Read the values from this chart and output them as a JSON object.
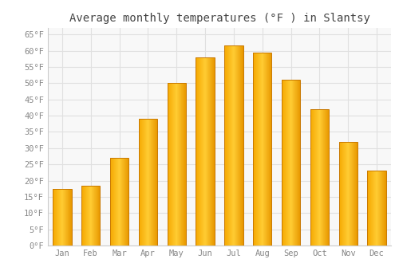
{
  "title": "Average monthly temperatures (°F ) in Slantsy",
  "months": [
    "Jan",
    "Feb",
    "Mar",
    "Apr",
    "May",
    "Jun",
    "Jul",
    "Aug",
    "Sep",
    "Oct",
    "Nov",
    "Dec"
  ],
  "values": [
    17.5,
    18.5,
    27.0,
    39.0,
    50.0,
    58.0,
    61.5,
    59.5,
    51.0,
    42.0,
    32.0,
    23.0
  ],
  "bar_color_left": "#F5A800",
  "bar_color_mid": "#FFCC33",
  "bar_color_right": "#E89800",
  "bar_edge_color": "#C87800",
  "ylim": [
    0,
    67
  ],
  "yticks": [
    0,
    5,
    10,
    15,
    20,
    25,
    30,
    35,
    40,
    45,
    50,
    55,
    60,
    65
  ],
  "background_color": "#ffffff",
  "plot_bg_color": "#f8f8f8",
  "grid_color": "#e0e0e0",
  "title_fontsize": 10,
  "tick_fontsize": 7.5,
  "tick_color": "#888888",
  "title_color": "#444444"
}
